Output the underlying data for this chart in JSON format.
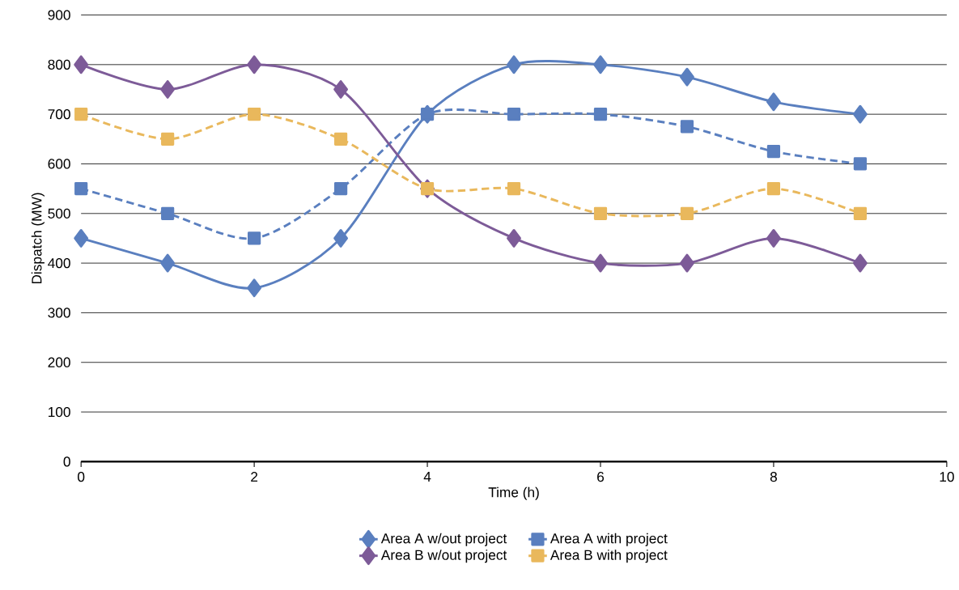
{
  "chart_data": {
    "type": "line",
    "xlabel": "Time (h)",
    "ylabel": "Dispatch (MW)",
    "x": [
      0,
      1,
      2,
      3,
      4,
      5,
      6,
      7,
      8,
      9
    ],
    "xlim": [
      0,
      10
    ],
    "xticks": [
      0,
      2,
      4,
      6,
      8,
      10
    ],
    "ylim": [
      0,
      900
    ],
    "yticks": [
      0,
      100,
      200,
      300,
      400,
      500,
      600,
      700,
      800,
      900
    ],
    "grid": "y",
    "legend": "bottom",
    "series": [
      {
        "name": "Area A w/out project",
        "color": "#5a7fbf",
        "marker": "diamond",
        "line_style": "solid",
        "values": [
          450,
          400,
          350,
          450,
          700,
          800,
          800,
          775,
          725,
          700
        ]
      },
      {
        "name": "Area A with project",
        "color": "#5a7fbf",
        "marker": "square",
        "line_style": "dashed",
        "values": [
          550,
          500,
          450,
          550,
          700,
          700,
          700,
          675,
          625,
          600
        ]
      },
      {
        "name": "Area B w/out project",
        "color": "#7d5b98",
        "marker": "diamond",
        "line_style": "solid",
        "values": [
          800,
          750,
          800,
          750,
          550,
          450,
          400,
          400,
          450,
          400
        ]
      },
      {
        "name": "Area B with project",
        "color": "#e9b85c",
        "marker": "square",
        "line_style": "dashed",
        "values": [
          700,
          650,
          700,
          650,
          550,
          550,
          500,
          500,
          550,
          500
        ]
      }
    ]
  }
}
